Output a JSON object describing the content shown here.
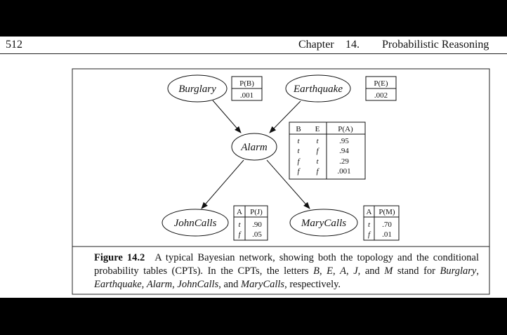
{
  "header": {
    "page_number": "512",
    "chapter_label": "Chapter",
    "chapter_number": "14.",
    "chapter_title": "Probabilistic Reasoning"
  },
  "figure": {
    "nodes": {
      "burglary": "Burglary",
      "earthquake": "Earthquake",
      "alarm": "Alarm",
      "johncalls": "JohnCalls",
      "marycalls": "MaryCalls"
    },
    "cpt_burglary": {
      "header": "P(B)",
      "value": ".001"
    },
    "cpt_earthquake": {
      "header": "P(E)",
      "value": ".002"
    },
    "cpt_alarm": {
      "headers": [
        "B",
        "E",
        "P(A)"
      ],
      "rows": [
        [
          "t",
          "t",
          ".95"
        ],
        [
          "t",
          "f",
          ".94"
        ],
        [
          "f",
          "t",
          ".29"
        ],
        [
          "f",
          "f",
          ".001"
        ]
      ]
    },
    "cpt_john": {
      "headers": [
        "A",
        "P(J)"
      ],
      "rows": [
        [
          "t",
          ".90"
        ],
        [
          "f",
          ".05"
        ]
      ]
    },
    "cpt_mary": {
      "headers": [
        "A",
        "P(M)"
      ],
      "rows": [
        [
          "t",
          ".70"
        ],
        [
          "f",
          ".01"
        ]
      ]
    }
  },
  "caption": {
    "label": "Figure 14.2",
    "text_a": "A typical Bayesian network, showing both the topology and the conditional probability tables (CPTs). In the CPTs, the letters ",
    "letters": [
      "B",
      "E",
      "A",
      "J",
      "M"
    ],
    "text_b": " stand for ",
    "names": [
      "Burglary",
      "Earthquake",
      "Alarm",
      "JohnCalls",
      "MaryCalls"
    ],
    "text_and": "and",
    "text_end": ", respectively."
  }
}
